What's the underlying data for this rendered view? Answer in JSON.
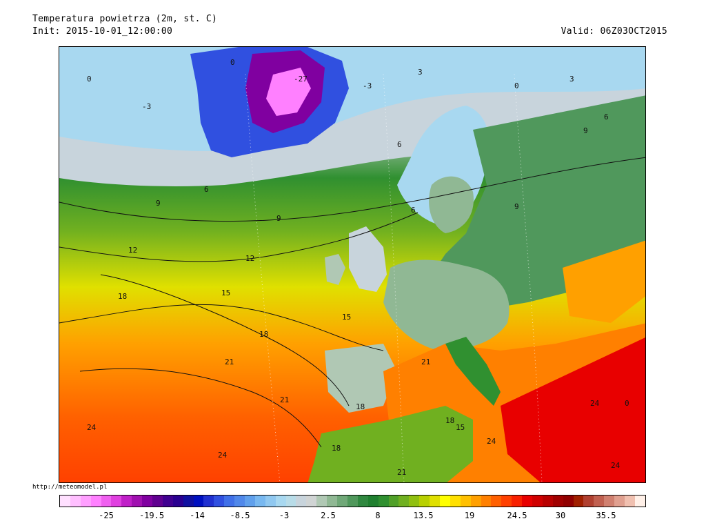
{
  "header": {
    "title": "Temperatura powietrza (2m, st. C)",
    "init": "Init: 2015-10-01_12:00:00",
    "valid": "Valid: 06Z03OCT2015"
  },
  "credit": "http://meteomodel.pl",
  "map": {
    "contour_labels": [
      "0",
      "-27",
      "-3",
      "3",
      "0",
      "-3",
      "0",
      "3",
      "6",
      "6",
      "6",
      "9",
      "9",
      "6",
      "9",
      "9",
      "12",
      "12",
      "15",
      "15",
      "18",
      "18",
      "18",
      "21",
      "21",
      "24",
      "24",
      "24",
      "21",
      "18",
      "15",
      "21",
      "24",
      "24",
      "18",
      "0"
    ]
  },
  "legend": {
    "colors": [
      "#ffe0ff",
      "#ffbfff",
      "#ff9fff",
      "#ff80ff",
      "#f060f0",
      "#e040e0",
      "#c020c8",
      "#a010b0",
      "#8000a0",
      "#600090",
      "#400090",
      "#2a0090",
      "#1010a0",
      "#0010c0",
      "#2030d0",
      "#3050e0",
      "#4070e8",
      "#5088ea",
      "#60a0ec",
      "#78b8f0",
      "#90c8f0",
      "#a8d8f0",
      "#b8dce8",
      "#c8d4dc",
      "#d0d4d4",
      "#b0c8b4",
      "#90b894",
      "#70a878",
      "#50985c",
      "#308840",
      "#208030",
      "#309030",
      "#50a028",
      "#70b020",
      "#90c010",
      "#b8d000",
      "#e0e000",
      "#ffff00",
      "#ffe000",
      "#ffc000",
      "#ffa000",
      "#ff8000",
      "#ff6000",
      "#ff4000",
      "#f82000",
      "#e80000",
      "#d00000",
      "#b80000",
      "#a00000",
      "#900000",
      "#a02000",
      "#b04030",
      "#c06050",
      "#d08070",
      "#e0a090",
      "#f0c0b0",
      "#fff0e8"
    ],
    "ticks": [
      "-25",
      "-19.5",
      "-14",
      "-8.5",
      "-3",
      "2.5",
      "8",
      "13.5",
      "19",
      "24.5",
      "30",
      "35.5"
    ]
  }
}
